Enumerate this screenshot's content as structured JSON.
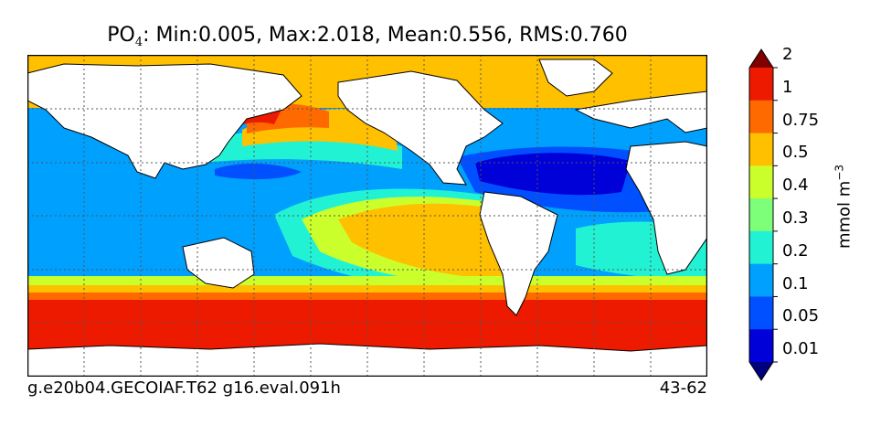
{
  "title": {
    "species": "PO",
    "subscript": "4",
    "stats": ": Min:0.005, Max:2.018, Mean:0.556, RMS:0.760"
  },
  "caption": {
    "left": "g.e20b04.GECOIAF.T62 g16.eval.091h",
    "right": "43-62"
  },
  "colorbar": {
    "unit_base": "mmol m",
    "unit_exponent": "−3",
    "extend": "both",
    "levels": [
      "0.01",
      "0.05",
      "0.1",
      "0.2",
      "0.3",
      "0.4",
      "0.5",
      "0.75",
      "1",
      "2"
    ],
    "colors": [
      "#00007f",
      "#0000d9",
      "#0050ff",
      "#00a0ff",
      "#22f2d4",
      "#7dff7a",
      "#cbff2b",
      "#ffc000",
      "#ff6a00",
      "#ee1a00",
      "#800000"
    ]
  },
  "map": {
    "land_color": "#ffffff",
    "grid": true,
    "grid_style": "dotted",
    "projection": "cylindrical"
  }
}
